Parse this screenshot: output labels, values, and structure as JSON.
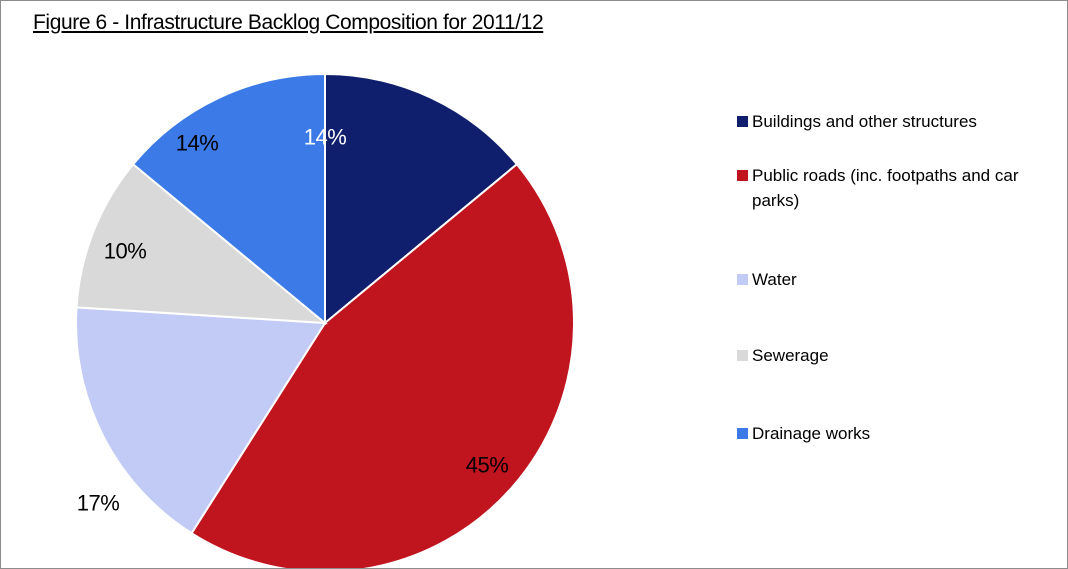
{
  "chart_data": {
    "type": "pie",
    "title": "Figure 6 - Infrastructure Backlog Composition for 2011/12",
    "legend_position": "right",
    "slices": [
      {
        "label": "Buildings and other structures",
        "value": 14,
        "display": "14%",
        "color": "#0f1f6e",
        "label_color": "#ffffff"
      },
      {
        "label": "Public roads (inc. footpaths and car parks)",
        "value": 45,
        "display": "45%",
        "color": "#c0141f",
        "label_color": "#000000"
      },
      {
        "label": "Water",
        "value": 17,
        "display": "17%",
        "color": "#c2cbf5",
        "label_color": "#000000"
      },
      {
        "label": "Sewerage",
        "value": 10,
        "display": "10%",
        "color": "#d9d9d9",
        "label_color": "#000000"
      },
      {
        "label": "Drainage works",
        "value": 14,
        "display": "14%",
        "color": "#3c7ae8",
        "label_color": "#000000"
      }
    ]
  }
}
